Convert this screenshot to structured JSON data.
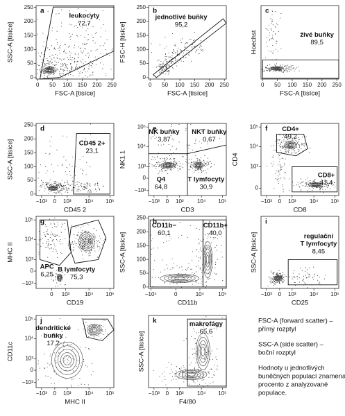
{
  "panels": [
    {
      "letter": "a",
      "xlabel": "FSC-A [tisíce]",
      "ylabel": "SSC-A [tisíce]",
      "xticks": [
        "0",
        "50",
        "100",
        "150",
        "200",
        "250"
      ],
      "yticks": [
        "0",
        "50",
        "100",
        "150",
        "200",
        "250"
      ],
      "gates": [
        {
          "name": [
            "leukocyty"
          ],
          "value": "72,7"
        }
      ]
    },
    {
      "letter": "b",
      "xlabel": "FSC-A [tisíce]",
      "ylabel": "FSC-H [tisíce]",
      "xticks": [
        "0",
        "50",
        "100",
        "150",
        "200",
        "250"
      ],
      "yticks": [
        "0",
        "50",
        "100",
        "150",
        "200",
        "250"
      ],
      "gates": [
        {
          "name": [
            "jednotlivé buňky"
          ],
          "value": "95,2"
        }
      ]
    },
    {
      "letter": "c",
      "xlabel": "FSC-A [tisíce]",
      "ylabel": "Hoechst",
      "xticks": [
        "0",
        "50",
        "100",
        "150",
        "200",
        "250"
      ],
      "yticks": [],
      "gates": [
        {
          "name": [
            "živé buňky"
          ],
          "value": "89,5"
        }
      ]
    },
    {
      "letter": "d",
      "xlabel": "CD45 2",
      "ylabel": "SSC-A [tisíce]",
      "xticks": [
        "−10³",
        "0",
        "10³",
        "10⁴",
        "10⁵"
      ],
      "yticks": [
        "0",
        "50",
        "100",
        "150",
        "200",
        "250"
      ],
      "gates": [
        {
          "name": [
            "CD45 2+"
          ],
          "value": "23,1"
        }
      ]
    },
    {
      "letter": "e",
      "xlabel": "CD3",
      "ylabel": "NK1.1",
      "xticks": [
        "−10³",
        "0",
        "10³",
        "10⁴",
        "10⁵"
      ],
      "yticks": [
        "−10³",
        "0",
        "10³",
        "10⁴",
        "10⁵"
      ],
      "gates": [
        {
          "name": [
            "NK buňky"
          ],
          "value": "3,87"
        },
        {
          "name": [
            "NKT buňky"
          ],
          "value": "0,67"
        },
        {
          "name": [
            "Q4"
          ],
          "value": "64,8"
        },
        {
          "name": [
            "T lymfocyty"
          ],
          "value": "30,9"
        }
      ]
    },
    {
      "letter": "f",
      "xlabel": "CD8",
      "ylabel": "CD4",
      "xticks": [
        "−10³",
        "0",
        "10³",
        "10⁴",
        "10⁵"
      ],
      "yticks": [
        "0",
        "10³",
        "10⁴",
        "10⁵"
      ],
      "gates": [
        {
          "name": [
            "CD4+"
          ],
          "value": "49,2"
        },
        {
          "name": [
            "CD8+"
          ],
          "value": "41,4"
        }
      ]
    },
    {
      "letter": "g",
      "xlabel": "CD19",
      "ylabel": "MHC II",
      "xticks": [
        "0",
        "10³",
        "10⁴",
        "10⁵"
      ],
      "yticks": [
        "−10³",
        "0",
        "10³",
        "10⁴",
        "10⁵"
      ],
      "gates": [
        {
          "name": [
            "APC"
          ],
          "value": "6,25"
        },
        {
          "name": [
            "B lymfocyty"
          ],
          "value": "75,3"
        }
      ]
    },
    {
      "letter": "h",
      "xlabel": "CD11b",
      "ylabel": "SSC-A [tisíce]",
      "xticks": [
        "−10⁴",
        "0",
        "10⁴",
        "10⁵"
      ],
      "yticks": [
        "0",
        "50",
        "100",
        "150",
        "200",
        "250"
      ],
      "gates": [
        {
          "name": [
            "CD11b−"
          ],
          "value": "60,1"
        },
        {
          "name": [
            "CD11b+"
          ],
          "value": "40,0"
        }
      ]
    },
    {
      "letter": "i",
      "xlabel": "CD25",
      "ylabel": "SSC-A [tisíce]",
      "xticks": [
        "−10³",
        "0",
        "10³",
        "10⁴",
        "10⁵"
      ],
      "yticks": [],
      "gates": [
        {
          "name": [
            "regulační",
            "T lymfocyty"
          ],
          "value": "8,45"
        }
      ]
    },
    {
      "letter": "j",
      "xlabel": "MHC II",
      "ylabel": "CD11c",
      "xticks": [
        "−10³",
        "0",
        "10³",
        "10⁴",
        "10⁵"
      ],
      "yticks": [
        "−10³",
        "0",
        "10³",
        "10⁴",
        "10⁵"
      ],
      "gates": [
        {
          "name": [
            "dendritické",
            "buňky"
          ],
          "value": "17,2"
        }
      ]
    },
    {
      "letter": "k",
      "xlabel": "F4/80",
      "ylabel": "SSC-A [tisíce]",
      "xticks": [
        "−10³",
        "0",
        "10³",
        "10⁴",
        "10⁵"
      ],
      "yticks": [],
      "gates": [
        {
          "name": [
            "makrofágy"
          ],
          "value": "65,6"
        }
      ]
    }
  ],
  "notes": [
    [
      "FSC-A (forward scatter) –",
      "přímý rozptyl"
    ],
    [
      "SSC-A (side scatter) –",
      "boční rozptyl"
    ],
    [
      "Hodnoty u jednotlivých",
      "buněčných populací znamenají",
      "procento z analyzované",
      "populace."
    ]
  ]
}
